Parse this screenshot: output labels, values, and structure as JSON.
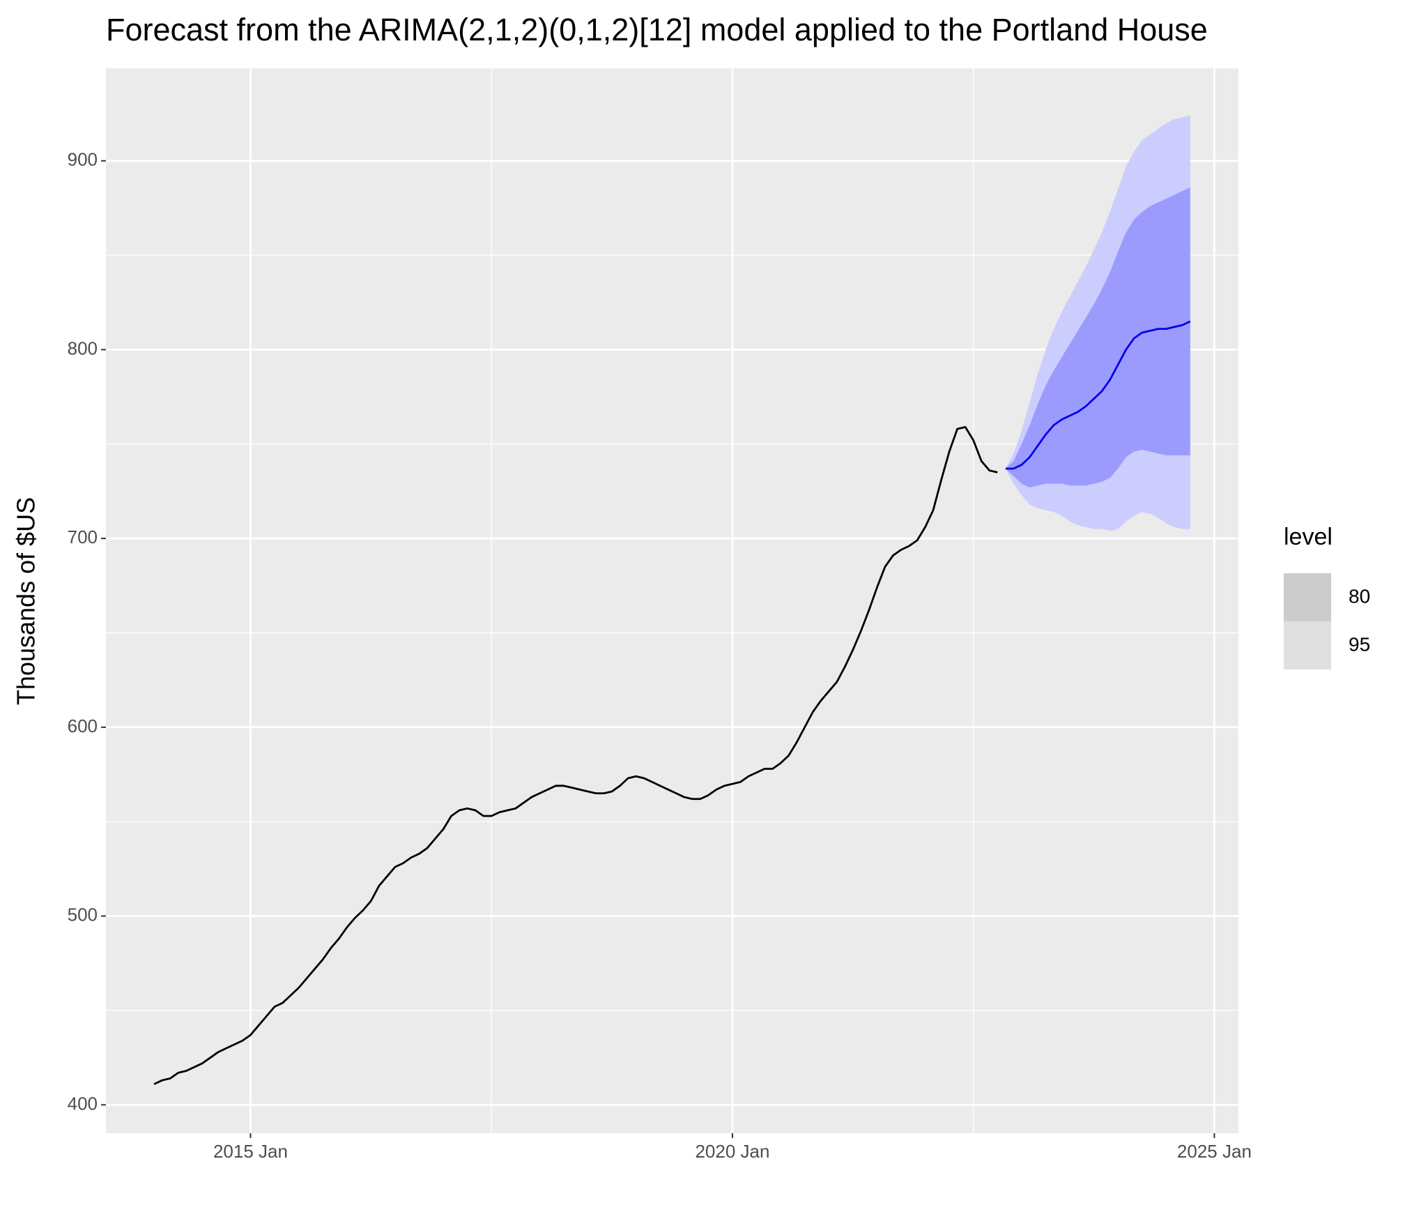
{
  "chart_data": {
    "type": "line",
    "title": "Forecast from the ARIMA(2,1,2)(0,1,2)[12] model applied to the Portland House",
    "y_label": "Thousands of $US",
    "xlim": [
      "2013 Jul",
      "2025 Apr"
    ],
    "xticks": [
      "2015 Jan",
      "2020 Jan",
      "2025 Jan"
    ],
    "ylim": [
      385,
      949
    ],
    "yticks": [
      400,
      500,
      600,
      700,
      800,
      900
    ],
    "grid": true,
    "legend_title": "level",
    "legend_position": "right",
    "series": [
      {
        "color": "#000000",
        "x": [
          "2014 Jan",
          "2014 Feb",
          "2014 Mar",
          "2014 Apr",
          "2014 May",
          "2014 Jun",
          "2014 Jul",
          "2014 Aug",
          "2014 Sep",
          "2014 Oct",
          "2014 Nov",
          "2014 Dec",
          "2015 Jan",
          "2015 Feb",
          "2015 Mar",
          "2015 Apr",
          "2015 May",
          "2015 Jun",
          "2015 Jul",
          "2015 Aug",
          "2015 Sep",
          "2015 Oct",
          "2015 Nov",
          "2015 Dec",
          "2016 Jan",
          "2016 Feb",
          "2016 Mar",
          "2016 Apr",
          "2016 May",
          "2016 Jun",
          "2016 Jul",
          "2016 Aug",
          "2016 Sep",
          "2016 Oct",
          "2016 Nov",
          "2016 Dec",
          "2017 Jan",
          "2017 Feb",
          "2017 Mar",
          "2017 Apr",
          "2017 May",
          "2017 Jun",
          "2017 Jul",
          "2017 Aug",
          "2017 Sep",
          "2017 Oct",
          "2017 Nov",
          "2017 Dec",
          "2018 Jan",
          "2018 Feb",
          "2018 Mar",
          "2018 Apr",
          "2018 May",
          "2018 Jun",
          "2018 Jul",
          "2018 Aug",
          "2018 Sep",
          "2018 Oct",
          "2018 Nov",
          "2018 Dec",
          "2019 Jan",
          "2019 Feb",
          "2019 Mar",
          "2019 Apr",
          "2019 May",
          "2019 Jun",
          "2019 Jul",
          "2019 Aug",
          "2019 Sep",
          "2019 Oct",
          "2019 Nov",
          "2019 Dec",
          "2020 Jan",
          "2020 Feb",
          "2020 Mar",
          "2020 Apr",
          "2020 May",
          "2020 Jun",
          "2020 Jul",
          "2020 Aug",
          "2020 Sep",
          "2020 Oct",
          "2020 Nov",
          "2020 Dec",
          "2021 Jan",
          "2021 Feb",
          "2021 Mar",
          "2021 Apr",
          "2021 May",
          "2021 Jun",
          "2021 Jul",
          "2021 Aug",
          "2021 Sep",
          "2021 Oct",
          "2021 Nov",
          "2021 Dec",
          "2022 Jan",
          "2022 Feb",
          "2022 Mar",
          "2022 Apr",
          "2022 May",
          "2022 Jun",
          "2022 Jul",
          "2022 Aug",
          "2022 Sep",
          "2022 Oct"
        ],
        "values": [
          411,
          413,
          414,
          417,
          418,
          420,
          422,
          425,
          428,
          430,
          432,
          434,
          437,
          442,
          447,
          452,
          454,
          458,
          462,
          467,
          472,
          477,
          483,
          488,
          494,
          499,
          503,
          508,
          516,
          521,
          526,
          528,
          531,
          533,
          536,
          541,
          546,
          553,
          556,
          557,
          556,
          553,
          553,
          555,
          556,
          557,
          560,
          563,
          565,
          567,
          569,
          569,
          568,
          567,
          566,
          565,
          565,
          566,
          569,
          573,
          574,
          573,
          571,
          569,
          567,
          565,
          563,
          562,
          562,
          564,
          567,
          569,
          570,
          571,
          574,
          576,
          578,
          578,
          581,
          585,
          592,
          600,
          608,
          614,
          619,
          624,
          632,
          641,
          651,
          662,
          674,
          685,
          691,
          694,
          696,
          699,
          706,
          715,
          731,
          746,
          758,
          759,
          752,
          741,
          736,
          735
        ]
      },
      {
        "color": "#0000ee",
        "x": [
          "2022 Nov",
          "2022 Dec",
          "2023 Jan",
          "2023 Feb",
          "2023 Mar",
          "2023 Apr",
          "2023 May",
          "2023 Jun",
          "2023 Jul",
          "2023 Aug",
          "2023 Sep",
          "2023 Oct",
          "2023 Nov",
          "2023 Dec",
          "2024 Jan",
          "2024 Feb",
          "2024 Mar",
          "2024 Apr",
          "2024 May",
          "2024 Jun",
          "2024 Jul",
          "2024 Aug",
          "2024 Sep",
          "2024 Oct"
        ],
        "values": [
          737,
          737,
          739,
          743,
          749,
          755,
          760,
          763,
          765,
          767,
          770,
          774,
          778,
          784,
          792,
          800,
          806,
          809,
          810,
          811,
          811,
          812,
          813,
          815
        ]
      }
    ],
    "intervals": [
      {
        "name": "95",
        "color": "#cccdff",
        "swatch": "#e0e0e0",
        "lower": [
          737,
          729,
          723,
          718,
          716,
          715,
          714,
          712,
          709,
          707,
          706,
          705,
          705,
          704,
          705,
          709,
          712,
          714,
          713,
          711,
          708,
          706,
          705,
          705
        ],
        "upper": [
          737,
          745,
          757,
          772,
          787,
          800,
          811,
          820,
          828,
          836,
          844,
          853,
          862,
          873,
          885,
          897,
          905,
          911,
          914,
          917,
          920,
          922,
          923,
          924
        ]
      },
      {
        "name": "80",
        "color": "#9b9bfd",
        "swatch": "#cccccc",
        "lower": [
          737,
          733,
          729,
          727,
          728,
          729,
          729,
          729,
          728,
          728,
          728,
          729,
          730,
          732,
          737,
          743,
          746,
          747,
          746,
          745,
          744,
          744,
          744,
          744
        ],
        "upper": [
          737,
          741,
          750,
          760,
          771,
          781,
          789,
          796,
          803,
          810,
          817,
          824,
          832,
          841,
          852,
          862,
          869,
          873,
          876,
          878,
          880,
          882,
          884,
          886
        ]
      }
    ]
  }
}
